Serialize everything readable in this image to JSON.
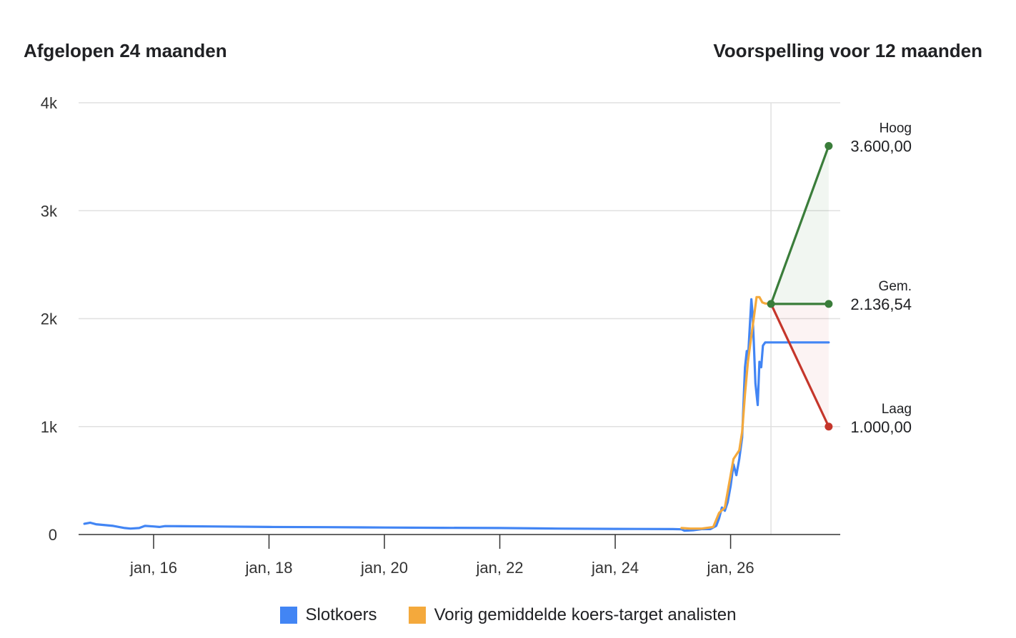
{
  "header": {
    "left_title": "Afgelopen 24 maanden",
    "right_title": "Voorspelling voor 12 maanden"
  },
  "colors": {
    "close": "#4285f4",
    "target": "#f4a93c",
    "high": "#3a7d3a",
    "low": "#c5362b",
    "grid": "#e0e0e0",
    "axis": "#333333"
  },
  "legend": [
    {
      "label": "Slotkoers",
      "color": "#4285f4"
    },
    {
      "label": "Vorig gemiddelde koers-target analisten",
      "color": "#f4a93c"
    }
  ],
  "chart_data": {
    "type": "line",
    "ylim": [
      0,
      4000
    ],
    "yticks": [
      {
        "value": 0,
        "label": "0"
      },
      {
        "value": 1000,
        "label": "1k"
      },
      {
        "value": 2000,
        "label": "2k"
      },
      {
        "value": 3000,
        "label": "3k"
      },
      {
        "value": 4000,
        "label": "4k"
      }
    ],
    "xlim": [
      2014.7,
      2027.9
    ],
    "xticks": [
      {
        "value": 2016,
        "label": "jan, 16"
      },
      {
        "value": 2018,
        "label": "jan, 18"
      },
      {
        "value": 2020,
        "label": "jan, 20"
      },
      {
        "value": 2022,
        "label": "jan, 22"
      },
      {
        "value": 2024,
        "label": "jan, 24"
      },
      {
        "value": 2026,
        "label": "jan, 26"
      }
    ],
    "forecast_start": 2026.7,
    "series": [
      {
        "name": "Slotkoers",
        "points": [
          [
            2014.8,
            100
          ],
          [
            2014.9,
            110
          ],
          [
            2015.0,
            95
          ],
          [
            2015.1,
            90
          ],
          [
            2015.2,
            85
          ],
          [
            2015.3,
            80
          ],
          [
            2015.4,
            70
          ],
          [
            2015.5,
            60
          ],
          [
            2015.6,
            55
          ],
          [
            2015.75,
            60
          ],
          [
            2015.85,
            80
          ],
          [
            2016.0,
            75
          ],
          [
            2016.1,
            70
          ],
          [
            2016.2,
            78
          ],
          [
            2017.0,
            75
          ],
          [
            2018.0,
            70
          ],
          [
            2019.0,
            68
          ],
          [
            2020.0,
            65
          ],
          [
            2021.0,
            62
          ],
          [
            2022.0,
            60
          ],
          [
            2023.0,
            55
          ],
          [
            2024.0,
            52
          ],
          [
            2025.0,
            50
          ],
          [
            2025.15,
            48
          ],
          [
            2025.2,
            35
          ],
          [
            2025.35,
            40
          ],
          [
            2025.5,
            50
          ],
          [
            2025.65,
            50
          ],
          [
            2025.75,
            80
          ],
          [
            2025.8,
            150
          ],
          [
            2025.85,
            250
          ],
          [
            2025.9,
            220
          ],
          [
            2025.95,
            300
          ],
          [
            2026.0,
            450
          ],
          [
            2026.05,
            650
          ],
          [
            2026.1,
            550
          ],
          [
            2026.15,
            700
          ],
          [
            2026.2,
            900
          ],
          [
            2026.25,
            1550
          ],
          [
            2026.28,
            1700
          ],
          [
            2026.3,
            1620
          ],
          [
            2026.33,
            1900
          ],
          [
            2026.36,
            2180
          ],
          [
            2026.38,
            2050
          ],
          [
            2026.4,
            1800
          ],
          [
            2026.43,
            1400
          ],
          [
            2026.45,
            1300
          ],
          [
            2026.47,
            1200
          ],
          [
            2026.5,
            1600
          ],
          [
            2026.53,
            1550
          ],
          [
            2026.56,
            1750
          ],
          [
            2026.6,
            1780
          ],
          [
            2026.7,
            1780
          ],
          [
            2027.7,
            1780
          ]
        ]
      },
      {
        "name": "Vorig gemiddelde koers-target analisten",
        "points": [
          [
            2025.15,
            60
          ],
          [
            2025.3,
            55
          ],
          [
            2025.5,
            55
          ],
          [
            2025.7,
            70
          ],
          [
            2025.8,
            200
          ],
          [
            2025.9,
            250
          ],
          [
            2026.0,
            550
          ],
          [
            2026.05,
            700
          ],
          [
            2026.1,
            740
          ],
          [
            2026.15,
            780
          ],
          [
            2026.2,
            950
          ],
          [
            2026.25,
            1300
          ],
          [
            2026.3,
            1600
          ],
          [
            2026.35,
            1800
          ],
          [
            2026.4,
            2000
          ],
          [
            2026.45,
            2200
          ],
          [
            2026.5,
            2200
          ],
          [
            2026.55,
            2150
          ],
          [
            2026.6,
            2140
          ],
          [
            2026.65,
            2140
          ],
          [
            2026.7,
            2136.54
          ]
        ]
      }
    ],
    "forecast": {
      "start_value": 2136.54,
      "end_x": 2027.7,
      "high": {
        "label": "Hoog",
        "value": 3600,
        "value_label": "3.600,00"
      },
      "average": {
        "label": "Gem.",
        "value": 2136.54,
        "value_label": "2.136,54"
      },
      "low": {
        "label": "Laag",
        "value": 1000,
        "value_label": "1.000,00"
      }
    }
  }
}
